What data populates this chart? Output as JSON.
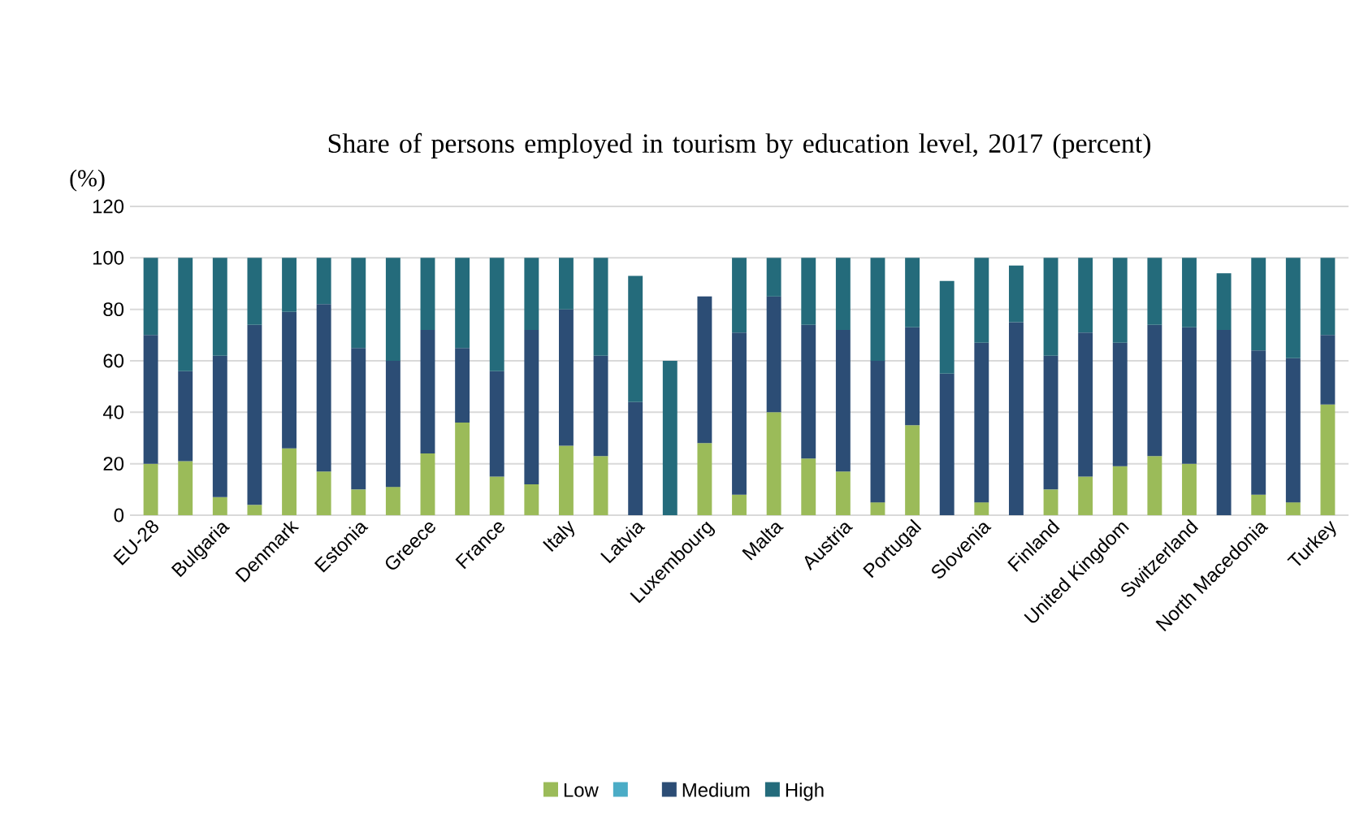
{
  "chart_data": {
    "type": "bar",
    "stacked": true,
    "title": "Share of persons employed in tourism by education level, 2017 (percent)",
    "ylabel": "(%)",
    "categories": [
      "EU-28",
      null,
      "Bulgaria",
      null,
      "Denmark",
      null,
      "Estonia",
      null,
      "Greece",
      null,
      "France",
      null,
      "Italy",
      null,
      "Latvia",
      null,
      "Luxembourg",
      null,
      "Malta",
      null,
      "Austria",
      null,
      "Portugal",
      null,
      "Slovenia",
      null,
      "Finland",
      null,
      "United Kingdom",
      null,
      "Switzerland",
      null,
      "North Macedonia",
      null,
      "Turkey"
    ],
    "series": [
      {
        "name": "Low",
        "color": "#9bbb59",
        "values": [
          20,
          21,
          7,
          4,
          26,
          17,
          10,
          11,
          24,
          36,
          15,
          12,
          27,
          23,
          null,
          null,
          28,
          8,
          40,
          22,
          17,
          5,
          35,
          null,
          5,
          null,
          10,
          15,
          19,
          23,
          20,
          null,
          8,
          5,
          43
        ]
      },
      {
        "name": "Medium",
        "color": "#2c4d75",
        "values": [
          50,
          35,
          55,
          70,
          53,
          65,
          55,
          49,
          48,
          29,
          41,
          60,
          53,
          39,
          44,
          null,
          57,
          63,
          45,
          52,
          55,
          55,
          38,
          55,
          62,
          75,
          52,
          56,
          48,
          51,
          53,
          72,
          56,
          56,
          27
        ]
      },
      {
        "name": "High",
        "color": "#246b7b",
        "values": [
          30,
          44,
          38,
          26,
          21,
          18,
          35,
          40,
          28,
          35,
          44,
          28,
          20,
          38,
          49,
          60,
          null,
          29,
          15,
          26,
          28,
          40,
          27,
          36,
          33,
          22,
          38,
          29,
          33,
          26,
          27,
          22,
          36,
          39,
          30
        ]
      }
    ],
    "ylim": [
      0,
      120
    ],
    "yticks": [
      0,
      20,
      40,
      60,
      80,
      100,
      120
    ],
    "grid": "y",
    "legend": "bottom"
  }
}
